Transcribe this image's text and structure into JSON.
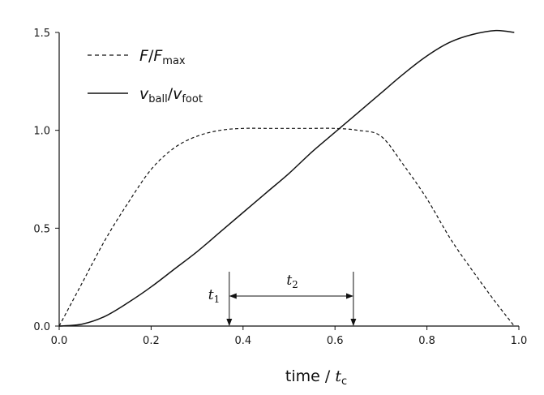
{
  "chart_data": {
    "type": "line",
    "title": "",
    "xlabel": {
      "main": "time / ",
      "italic": "t",
      "sub": "c"
    },
    "ylabel": "",
    "xlim": [
      0,
      1
    ],
    "ylim": [
      0,
      1.5
    ],
    "xticks": [
      "0.0",
      "0.2",
      "0.4",
      "0.6",
      "0.8",
      "1.0"
    ],
    "yticks": [
      "0.0",
      "0.5",
      "1.0",
      "1.5"
    ],
    "grid": false,
    "legend_position": "top-left",
    "series": [
      {
        "name": {
          "num": "F",
          "den": "F",
          "den_sub": "max"
        },
        "style": "dashed",
        "x": [
          0.0,
          0.05,
          0.1,
          0.15,
          0.2,
          0.25,
          0.3,
          0.35,
          0.4,
          0.45,
          0.5,
          0.55,
          0.6,
          0.65,
          0.7,
          0.75,
          0.8,
          0.85,
          0.9,
          0.95,
          0.99
        ],
        "y": [
          0.0,
          0.22,
          0.44,
          0.63,
          0.8,
          0.91,
          0.97,
          1.0,
          1.01,
          1.01,
          1.01,
          1.01,
          1.01,
          1.0,
          0.97,
          0.82,
          0.65,
          0.45,
          0.28,
          0.12,
          0.0
        ]
      },
      {
        "name": {
          "num": "v",
          "num_sub": "ball",
          "den": "v",
          "den_sub": "foot"
        },
        "style": "solid",
        "x": [
          0.0,
          0.05,
          0.1,
          0.15,
          0.2,
          0.25,
          0.3,
          0.35,
          0.4,
          0.45,
          0.5,
          0.55,
          0.6,
          0.65,
          0.7,
          0.75,
          0.8,
          0.85,
          0.9,
          0.95,
          0.99
        ],
        "y": [
          0.0,
          0.01,
          0.05,
          0.12,
          0.2,
          0.29,
          0.38,
          0.48,
          0.58,
          0.68,
          0.78,
          0.89,
          0.99,
          1.09,
          1.19,
          1.29,
          1.38,
          1.45,
          1.49,
          1.51,
          1.5
        ]
      }
    ],
    "annotations": [
      {
        "label": "t",
        "sub": "1",
        "x": 0.37
      },
      {
        "label": "t",
        "sub": "2",
        "x_start": 0.37,
        "x_end": 0.64
      }
    ]
  }
}
